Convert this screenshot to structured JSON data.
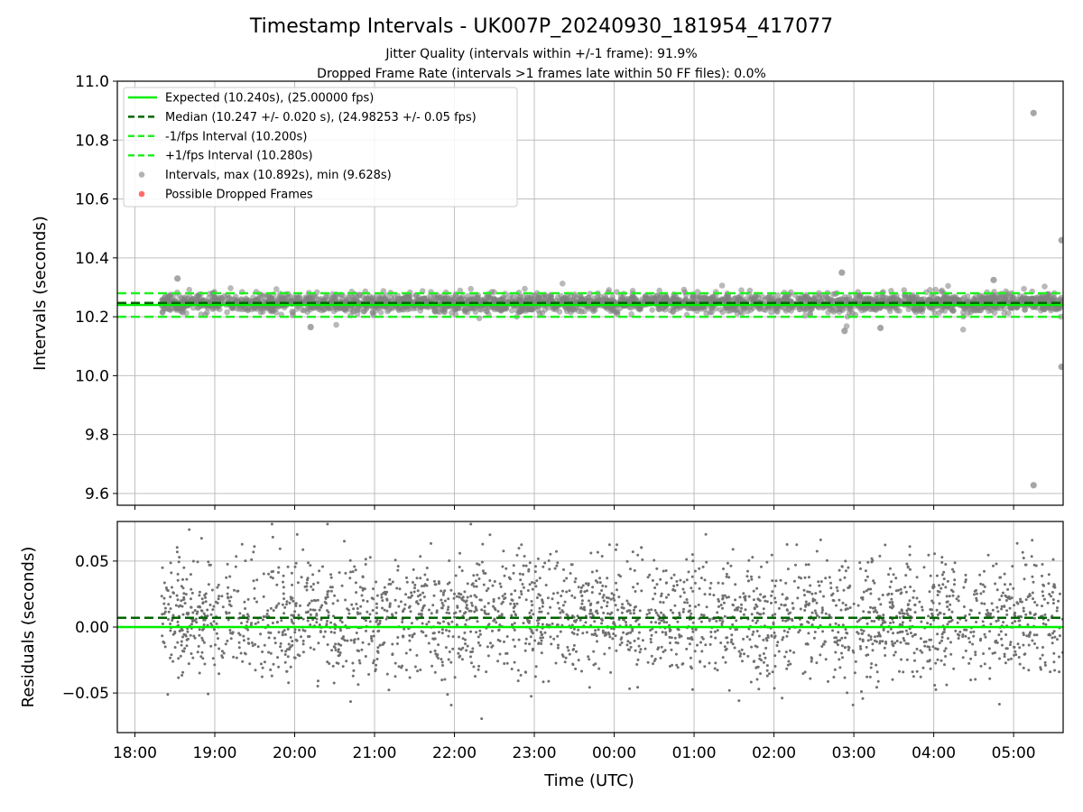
{
  "figure": {
    "title": "Timestamp Intervals - UK007P_20240930_181954_417077",
    "subtitle1": "Jitter Quality (intervals within +/-1 frame): 91.9%",
    "subtitle2": "Dropped Frame Rate (intervals >1 frames late within 50 FF files): 0.0%"
  },
  "colors": {
    "expected": "#00ee00",
    "median": "#006400",
    "interval_band": "#22ee22",
    "points": "#808080",
    "dropped": "#ff6b6b",
    "grid": "#b0b0b0"
  },
  "chart_data": [
    {
      "type": "scatter",
      "title": "",
      "xlabel": "",
      "ylabel": "Intervals (seconds)",
      "xlim_hours": [
        -0.22,
        11.62
      ],
      "ylim": [
        9.56,
        11.0
      ],
      "yticks": [
        "9.6",
        "9.8",
        "10.0",
        "10.2",
        "10.4",
        "10.6",
        "10.8",
        "11.0"
      ],
      "grid": true,
      "legend_position": "upper-left",
      "legend": [
        {
          "label": "Expected (10.240s), (25.00000 fps)",
          "style": "solid-line",
          "color": "#00ee00"
        },
        {
          "label": "Median (10.247 +/- 0.020 s), (24.98253 +/- 0.05 fps)",
          "style": "dashed-line",
          "color": "#006400"
        },
        {
          "label": "-1/fps Interval (10.200s)",
          "style": "dashed-line",
          "color": "#22ee22"
        },
        {
          "label": "+1/fps Interval (10.280s)",
          "style": "dashed-line",
          "color": "#22ee22"
        },
        {
          "label": "Intervals, max (10.892s), min (9.628s)",
          "style": "gray-dot",
          "color": "#808080"
        },
        {
          "label": "Possible Dropped Frames",
          "style": "red-dot",
          "color": "#ff6b6b"
        }
      ],
      "reference_lines": {
        "expected": 10.24,
        "median": 10.247,
        "minus_one_fps": 10.2,
        "plus_one_fps": 10.28
      },
      "series": [
        {
          "name": "Intervals, max (10.892s), min (9.628s)",
          "x_start": "18:20",
          "x_end": "05:37",
          "center": 10.247,
          "spread": 0.02,
          "notable_points": [
            {
              "x": "05:15",
              "y": 10.892
            },
            {
              "x": "05:36",
              "y": 10.46
            },
            {
              "x": "05:36",
              "y": 10.03
            },
            {
              "x": "05:15",
              "y": 9.628
            },
            {
              "x": "02:51",
              "y": 10.35
            },
            {
              "x": "18:32",
              "y": 10.33
            },
            {
              "x": "04:45",
              "y": 10.325
            },
            {
              "x": "20:12",
              "y": 10.165
            },
            {
              "x": "02:53",
              "y": 10.152
            },
            {
              "x": "03:20",
              "y": 10.162
            }
          ]
        }
      ]
    },
    {
      "type": "scatter",
      "title": "",
      "xlabel": "Time (UTC)",
      "ylabel": "Residuals (seconds)",
      "xlim_hours": [
        -0.22,
        11.62
      ],
      "ylim": [
        -0.08,
        0.08
      ],
      "yticks": [
        "−0.05",
        "0.00",
        "0.05"
      ],
      "xticks": [
        "18:00",
        "19:00",
        "20:00",
        "21:00",
        "22:00",
        "23:00",
        "00:00",
        "01:00",
        "02:00",
        "03:00",
        "04:00",
        "05:00"
      ],
      "grid": true,
      "reference_lines": {
        "expected": 0.0,
        "median": 0.007
      },
      "series": [
        {
          "name": "residuals",
          "x_start": "18:20",
          "x_end": "05:37",
          "center": 0.007,
          "spread": 0.03,
          "range": [
            -0.078,
            0.078
          ]
        }
      ]
    }
  ]
}
